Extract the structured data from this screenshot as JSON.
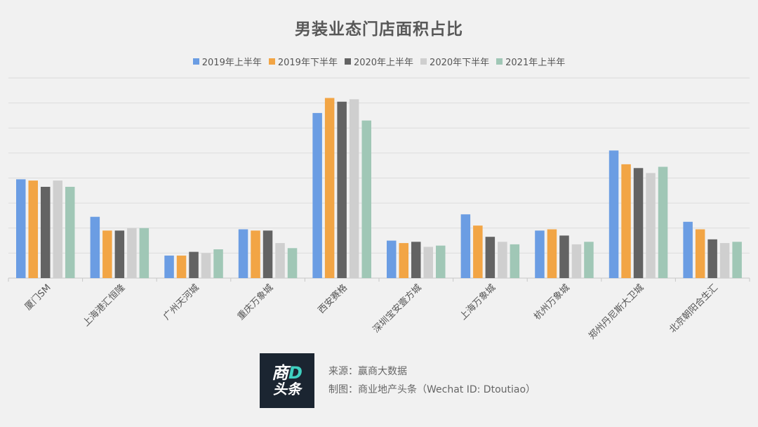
{
  "chart_data": {
    "type": "bar",
    "title": "男装业态门店面积占比",
    "categories": [
      "厦门SM",
      "上海港汇恒隆",
      "广州天河城",
      "重庆万象城",
      "西安赛格",
      "深圳宝安壹方城",
      "上海万象城",
      "杭州万象城",
      "郑州丹尼斯大卫城",
      "北京朝阳合生汇"
    ],
    "series": [
      {
        "name": "2019年上半年",
        "color": "#6b9de3",
        "values": [
          7.9,
          4.9,
          1.8,
          3.9,
          13.2,
          3.0,
          5.1,
          3.8,
          10.2,
          4.5
        ]
      },
      {
        "name": "2019年下半年",
        "color": "#f2a545",
        "values": [
          7.8,
          3.8,
          1.8,
          3.8,
          14.4,
          2.8,
          4.2,
          3.9,
          9.1,
          3.9
        ]
      },
      {
        "name": "2020年上半年",
        "color": "#636363",
        "values": [
          7.3,
          3.8,
          2.1,
          3.8,
          14.1,
          2.9,
          3.3,
          3.4,
          8.8,
          3.1
        ]
      },
      {
        "name": "2020年下半年",
        "color": "#cfcfcf",
        "values": [
          7.8,
          4.0,
          2.0,
          2.8,
          14.3,
          2.5,
          2.9,
          2.7,
          8.4,
          2.8
        ]
      },
      {
        "name": "2021年上半年",
        "color": "#a0c7b6",
        "values": [
          7.3,
          4.0,
          2.3,
          2.4,
          12.6,
          2.6,
          2.7,
          2.9,
          8.9,
          2.9
        ]
      }
    ],
    "ylim": [
      0,
      16
    ],
    "ygrid_step": 2,
    "grid": true,
    "legend_position": "top-center",
    "xlabel": "",
    "ylabel": ""
  },
  "footer": {
    "logo_top_1": "商",
    "logo_top_2": "D",
    "logo_bottom": "头条",
    "source": "来源：赢商大数据",
    "credit": "制图：商业地产头条（Wechat ID: Dtoutiao）"
  }
}
